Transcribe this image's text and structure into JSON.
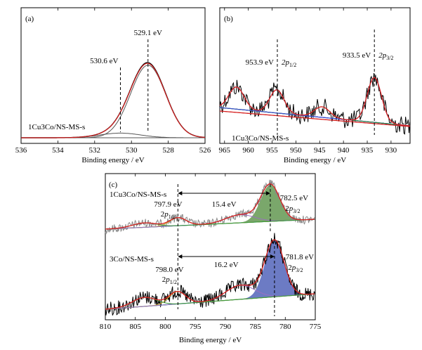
{
  "chart_data": [
    {
      "panel": "(a)",
      "type": "line",
      "xlabel": "Binding energy / eV",
      "xlim": [
        536,
        526
      ],
      "xticks": [
        536,
        534,
        532,
        530,
        528,
        526
      ],
      "sample_label": "1Cu3Co/NS-MS-s",
      "annotations": [
        {
          "text": "530.6 eV",
          "x": 530.6
        },
        {
          "text": "529.1 eV",
          "x": 529.1
        }
      ],
      "peaks": [
        {
          "center": 529.1,
          "height": 0.86,
          "width": 0.95
        },
        {
          "center": 530.6,
          "height": 0.055,
          "width": 1.1
        }
      ],
      "baseline": 0.02,
      "colors": {
        "envelope": "#d62020",
        "fit": "#555555",
        "data": "#000000"
      }
    },
    {
      "panel": "(b)",
      "type": "line",
      "xlabel": "Binding energy / eV",
      "xlim": [
        966,
        926
      ],
      "xticks": [
        965,
        960,
        955,
        950,
        945,
        940,
        935,
        930
      ],
      "sample_label": "1Cu3Co/NS-MS-s",
      "annotations": [
        {
          "text": "953.9 eV",
          "x": 953.9,
          "sub_label": "2p",
          "sub": "1/2"
        },
        {
          "text": "933.5 eV",
          "x": 933.5,
          "sub_label": "2p",
          "sub": "3/2"
        }
      ],
      "peaks": [
        {
          "center": 962.5,
          "height": 0.42,
          "width": 1.6
        },
        {
          "center": 954.0,
          "height": 0.44,
          "width": 1.5
        },
        {
          "center": 944.5,
          "height": 0.2,
          "width": 1.6
        },
        {
          "center": 933.5,
          "height": 0.85,
          "width": 1.5
        }
      ],
      "colors": {
        "envelope": "#d62020",
        "baseline1": "#d62020",
        "baseline2": "#3a4fd0",
        "fit_green": "#2a8a2a",
        "data": "#000000"
      }
    },
    {
      "panel": "(c)",
      "type": "line",
      "xlabel": "Binding energy / eV",
      "xlim": [
        810,
        775
      ],
      "xticks": [
        810,
        805,
        800,
        795,
        790,
        785,
        780,
        775
      ],
      "series": [
        {
          "name": "1Cu3Co/NS-MS-s",
          "peak_2p12": {
            "text": "797.9 eV",
            "x": 797.9
          },
          "peak_2p32": {
            "text": "782.5 eV",
            "x": 782.5
          },
          "split": "15.4 eV",
          "fill_color": "#4e8a3a"
        },
        {
          "name": "3Co/NS-MS-s",
          "peak_2p12": {
            "text": "798.0 eV",
            "x": 798.0
          },
          "peak_2p32": {
            "text": "781.8 eV",
            "x": 781.8
          },
          "split": "16.2 eV",
          "fill_color": "#3b4fb0"
        }
      ],
      "colors": {
        "envelope": "#d62020",
        "data_top": "#888888",
        "data_bottom": "#000000"
      }
    }
  ]
}
